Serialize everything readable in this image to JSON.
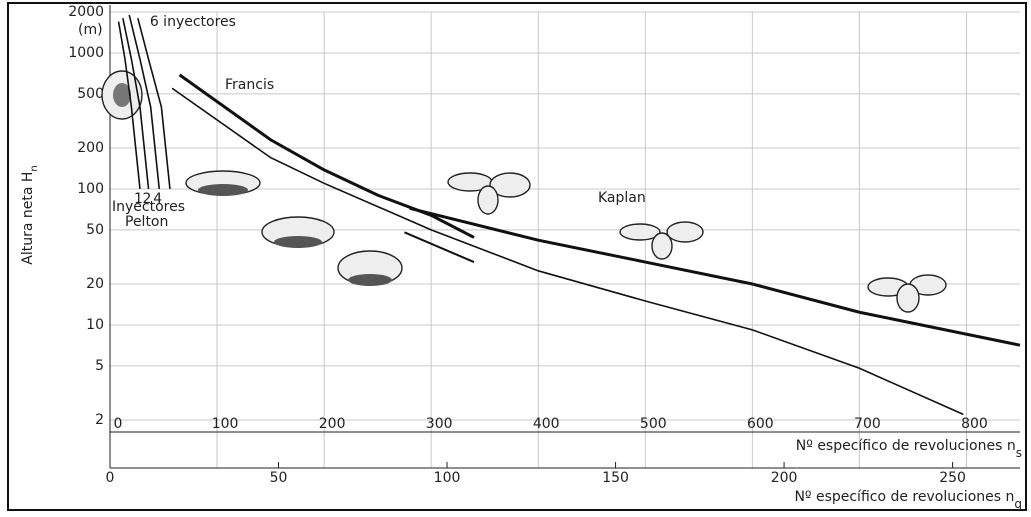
{
  "chart_data": {
    "type": "line",
    "ylog": true,
    "grid": true,
    "ylim": [
      2,
      2000
    ],
    "yticks": [
      2,
      5,
      10,
      20,
      50,
      100,
      200,
      500,
      1000,
      2000
    ],
    "y_unit": "(m)",
    "ylabel": "Altura neta H",
    "ylabel_sub": "n",
    "xlim": [
      0,
      850
    ],
    "xticks": [
      0,
      100,
      200,
      300,
      400,
      500,
      600,
      700,
      800
    ],
    "xlabel": "Nº específico de revoluciones n",
    "xlabel_sub": "s",
    "x2lim": [
      0,
      270
    ],
    "x2ticks": [
      0,
      50,
      100,
      150,
      200,
      250
    ],
    "x2label": "Nº específico de revoluciones n",
    "x2label_sub": "q",
    "annotations": [
      "Francis",
      "Kaplan",
      "Inyectores",
      "Pelton"
    ],
    "series": [
      {
        "name": "1",
        "color": "#111",
        "width": 1.6,
        "x": [
          8,
          14,
          20,
          28
        ],
        "values": [
          1700,
          900,
          400,
          100
        ]
      },
      {
        "name": "2",
        "color": "#111",
        "width": 1.6,
        "x": [
          12,
          20,
          28,
          36
        ],
        "values": [
          1800,
          900,
          400,
          100
        ]
      },
      {
        "name": "4",
        "color": "#111",
        "width": 1.6,
        "x": [
          18,
          28,
          38,
          46
        ],
        "values": [
          1900,
          900,
          400,
          100
        ]
      },
      {
        "name": "6 inyectores",
        "color": "#111",
        "width": 1.6,
        "x": [
          26,
          36,
          48,
          56
        ],
        "values": [
          1800,
          900,
          400,
          100
        ]
      },
      {
        "color": "#111",
        "width": 3,
        "x": [
          65,
          150,
          200,
          250,
          300,
          340
        ],
        "values": [
          690,
          230,
          138,
          90,
          64,
          44
        ]
      },
      {
        "color": "#111",
        "width": 1.6,
        "x": [
          58,
          150,
          200,
          300,
          400,
          500,
          600,
          700,
          797
        ],
        "values": [
          550,
          170,
          110,
          50,
          25,
          15,
          9.2,
          4.8,
          2.2
        ]
      },
      {
        "color": "#111",
        "width": 3,
        "x": [
          280,
          400,
          500,
          600,
          700,
          850
        ],
        "values": [
          72,
          42,
          29,
          20,
          12.4,
          7.1
        ]
      },
      {
        "color": "#111",
        "width": 2,
        "x": [
          275,
          340
        ],
        "values": [
          48,
          29
        ]
      }
    ]
  }
}
